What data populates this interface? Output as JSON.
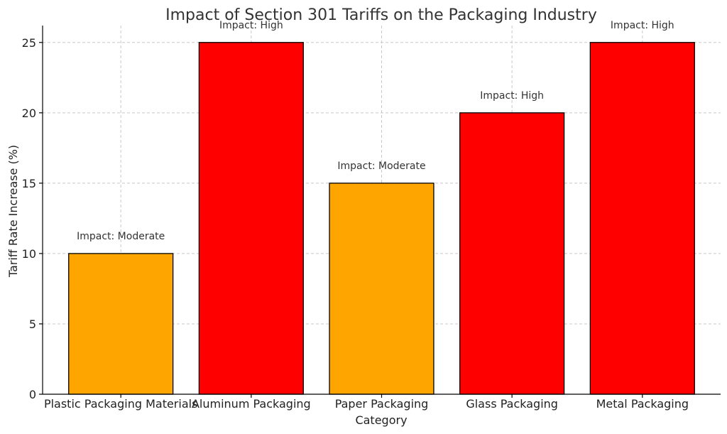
{
  "chart_data": {
    "type": "bar",
    "title": "Impact of Section 301 Tariffs on the Packaging Industry",
    "xlabel": "Category",
    "ylabel": "Tariff Rate Increase (%)",
    "categories": [
      "Plastic Packaging Materials",
      "Aluminum Packaging",
      "Paper Packaging",
      "Glass Packaging",
      "Metal Packaging"
    ],
    "values": [
      10,
      25,
      15,
      20,
      25
    ],
    "annotations": [
      "Impact: Moderate",
      "Impact: High",
      "Impact: Moderate",
      "Impact: High",
      "Impact: High"
    ],
    "bar_colors": [
      "#FFA500",
      "#FF0000",
      "#FFA500",
      "#FF0000",
      "#FF0000"
    ],
    "ylim": [
      0,
      26.2
    ],
    "yticks": [
      0,
      5,
      10,
      15,
      20,
      25
    ],
    "grid": true
  }
}
